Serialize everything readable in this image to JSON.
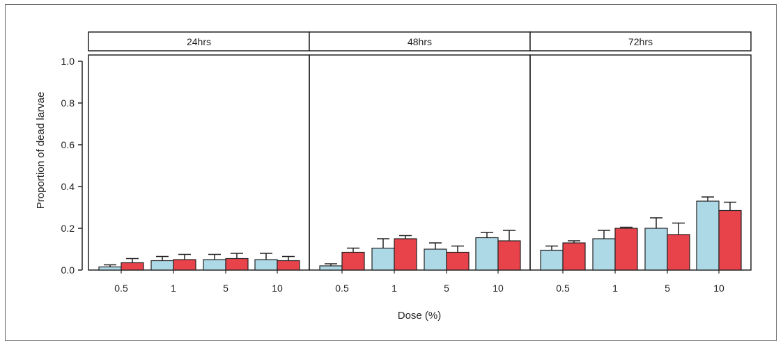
{
  "chart_data": {
    "type": "bar",
    "ylabel": "Proportion of dead larvae",
    "xlabel": "Dose (%)",
    "ylim": [
      0,
      1.0
    ],
    "yticks": [
      "0.0",
      "0.2",
      "0.4",
      "0.6",
      "0.8",
      "1.0"
    ],
    "categories": [
      "0.5",
      "1",
      "5",
      "10"
    ],
    "colors": {
      "series1": "#add8e6",
      "series2": "#e8434a"
    },
    "panels": [
      {
        "label": "24hrs",
        "series": [
          {
            "values": [
              0.015,
              0.045,
              0.05,
              0.05
            ],
            "errors": [
              0.01,
              0.02,
              0.025,
              0.03
            ]
          },
          {
            "values": [
              0.035,
              0.05,
              0.055,
              0.045
            ],
            "errors": [
              0.02,
              0.025,
              0.025,
              0.02
            ]
          }
        ]
      },
      {
        "label": "48hrs",
        "series": [
          {
            "values": [
              0.02,
              0.105,
              0.1,
              0.155
            ],
            "errors": [
              0.01,
              0.045,
              0.03,
              0.025
            ]
          },
          {
            "values": [
              0.085,
              0.15,
              0.085,
              0.14
            ],
            "errors": [
              0.02,
              0.015,
              0.03,
              0.05
            ]
          }
        ]
      },
      {
        "label": "72hrs",
        "series": [
          {
            "values": [
              0.095,
              0.15,
              0.2,
              0.33
            ],
            "errors": [
              0.02,
              0.04,
              0.05,
              0.02
            ]
          },
          {
            "values": [
              0.13,
              0.2,
              0.17,
              0.285
            ],
            "errors": [
              0.01,
              0.005,
              0.055,
              0.04
            ]
          }
        ]
      }
    ]
  }
}
